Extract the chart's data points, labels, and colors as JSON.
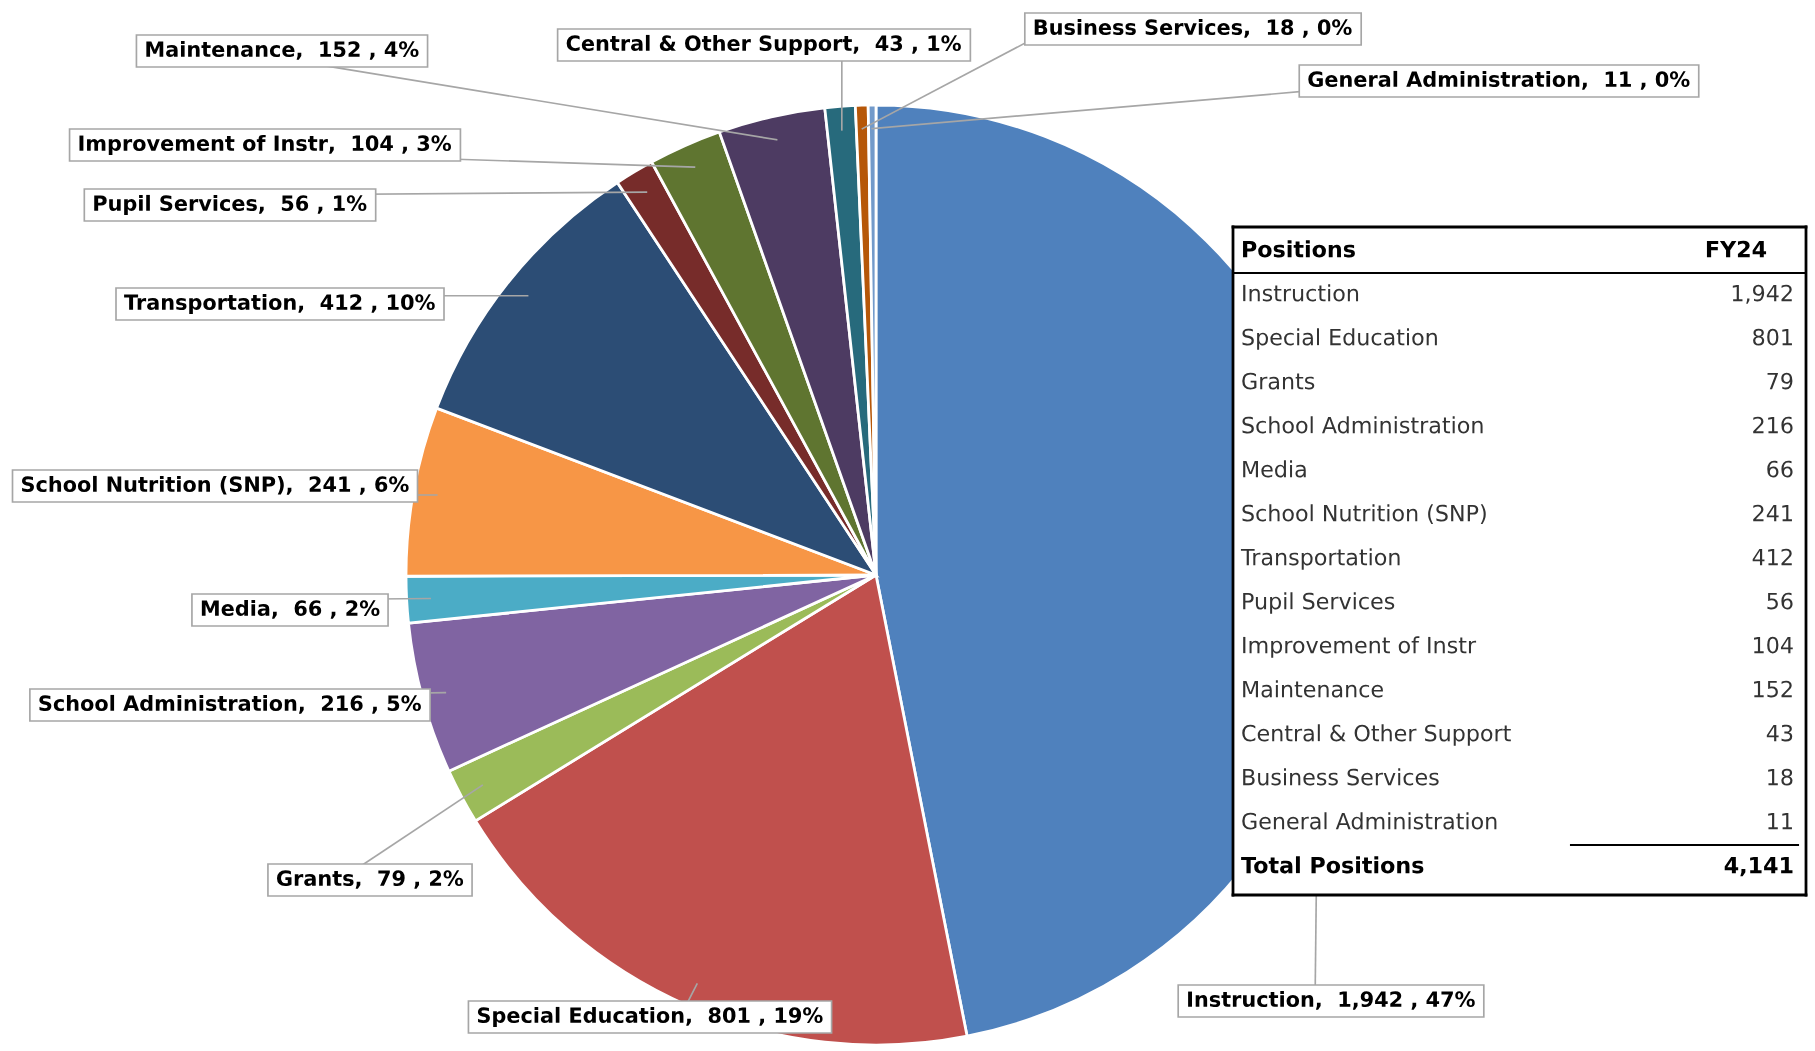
{
  "chart_data": [
    {
      "type": "pie",
      "categories": [
        "Instruction",
        "Special Education",
        "Grants",
        "School Administration",
        "Media",
        "School Nutrition (SNP)",
        "Transportation",
        "Pupil Services",
        "Improvement of Instr",
        "Maintenance",
        "Central & Other Support",
        "Business Services",
        "General Administration"
      ],
      "values": [
        1942,
        801,
        79,
        216,
        66,
        241,
        412,
        56,
        104,
        152,
        43,
        18,
        11
      ],
      "colors": [
        "#4f81bd",
        "#c0504d",
        "#9bbb59",
        "#8064a2",
        "#4bacc6",
        "#f79646",
        "#2c4d75",
        "#772c2a",
        "#5f7530",
        "#4d3b62",
        "#276a7c",
        "#b65708",
        "#729aca"
      ],
      "value_labels": [
        ",  1,942 , 47%",
        ",  801 , 19%",
        ",  79 , 2%",
        ",  216 , 5%",
        ",  66 , 2%",
        ",  241 , 6%",
        ",  412 , 10%",
        ",  56 , 1%",
        ",  104 , 3%",
        ",  152 , 4%",
        ",  43 , 1%",
        ",  18 , 0%",
        ",  11 , 0%"
      ],
      "legend": false
    },
    {
      "type": "other",
      "categories": [
        "Instruction",
        "Special Education",
        "Grants",
        "School Administration",
        "Media",
        "School Nutrition (SNP)",
        "Transportation",
        "Pupil Services",
        "Improvement of Instr",
        "Maintenance",
        "Central & Other Support",
        "Business Services",
        "General Administration"
      ],
      "values": [
        1942,
        801,
        79,
        216,
        66,
        241,
        412,
        56,
        104,
        152,
        43,
        18,
        11
      ],
      "value_labels": [
        "1,942",
        "801",
        "79",
        "216",
        "66",
        "241",
        "412",
        "56",
        "104",
        "152",
        "43",
        "18",
        "11"
      ],
      "annotations": [
        "Positions",
        "FY24",
        "Total Positions",
        "4,141"
      ]
    }
  ]
}
